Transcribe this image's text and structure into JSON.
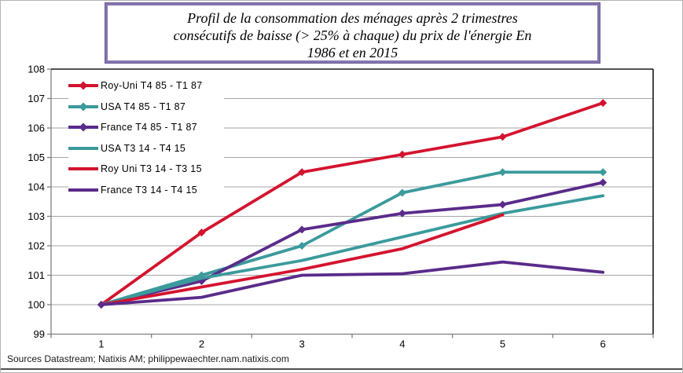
{
  "title": {
    "lines": [
      "Profil  de la consommation  des ménages après 2 trimestres",
      "consécutifs  de baisse (> 25% à chaque) du prix de l'énergie  En",
      "1986 et en 2015"
    ]
  },
  "footer": {
    "source": "Sources Datastream; Natixis AM; philippewaechter.nam.natixis.com"
  },
  "colors": {
    "red": "#D4142F",
    "teal": "#3B9A9C",
    "purple": "#5A2B8A",
    "grid": "#A6A6A6",
    "axis": "#808080",
    "plot_border": "#1a1a1a",
    "title_border": "#8576AE"
  },
  "chart_data": {
    "type": "line",
    "title": "Profil de la consommation des ménages après 2 trimestres consécutifs de baisse (> 25% à chaque) du prix de l'énergie En 1986 et en 2015",
    "xlabel": "",
    "ylabel": "",
    "categories": [
      "1",
      "2",
      "3",
      "4",
      "5",
      "6"
    ],
    "y_ticks": [
      99,
      100,
      101,
      102,
      103,
      104,
      105,
      106,
      107,
      108
    ],
    "ylim": [
      99,
      108
    ],
    "grid": true,
    "legend_position": "top-left-inside",
    "series": [
      {
        "name": "Roy-Uni T4 85 - T1 87",
        "color": "#D4142F",
        "marker": "diamond",
        "values": [
          100,
          102.45,
          104.5,
          105.1,
          105.7,
          106.85
        ]
      },
      {
        "name": "USA T4 85 - T1 87",
        "color": "#3B9A9C",
        "marker": "diamond",
        "values": [
          100,
          101.0,
          102.0,
          103.8,
          104.5,
          104.5
        ]
      },
      {
        "name": "France T4 85 - T1 87",
        "color": "#5A2B8A",
        "marker": "diamond",
        "values": [
          100,
          100.8,
          102.55,
          103.1,
          103.4,
          104.15
        ]
      },
      {
        "name": "USA T3 14 - T4 15",
        "color": "#3B9A9C",
        "marker": "none",
        "values": [
          100,
          100.9,
          101.5,
          102.3,
          103.1,
          103.7
        ]
      },
      {
        "name": "Roy Uni T3 14 - T3 15",
        "color": "#D4142F",
        "marker": "none",
        "values": [
          100,
          100.6,
          101.2,
          101.9,
          103.05,
          null
        ]
      },
      {
        "name": "France T3 14 - T4 15",
        "color": "#5A2B8A",
        "marker": "none",
        "values": [
          100,
          100.25,
          101.0,
          101.05,
          101.45,
          101.1
        ]
      }
    ]
  }
}
